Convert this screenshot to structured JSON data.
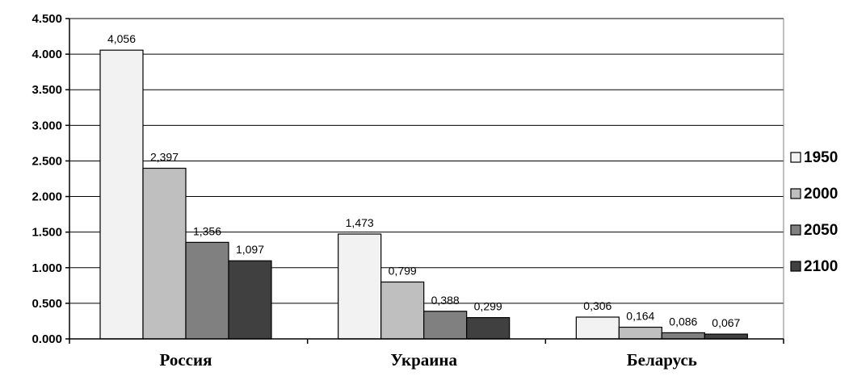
{
  "chart_data": {
    "type": "bar",
    "categories": [
      "Россия",
      "Украина",
      "Беларусь"
    ],
    "series": [
      {
        "name": "1950",
        "values": [
          4.056,
          1.473,
          0.306
        ],
        "labels": [
          "4,056",
          "1,473",
          "0,306"
        ],
        "color": "#f2f2f2"
      },
      {
        "name": "2000",
        "values": [
          2.397,
          0.799,
          0.164
        ],
        "labels": [
          "2,397",
          "0,799",
          "0,164"
        ],
        "color": "#bfbfbf"
      },
      {
        "name": "2050",
        "values": [
          1.356,
          0.388,
          0.086
        ],
        "labels": [
          "1,356",
          "0,388",
          "0,086"
        ],
        "color": "#808080"
      },
      {
        "name": "2100",
        "values": [
          1.097,
          0.299,
          0.067
        ],
        "labels": [
          "1,097",
          "0,299",
          "0,067"
        ],
        "color": "#404040"
      }
    ],
    "y_ticks": [
      "0.000",
      "0.500",
      "1.000",
      "1.500",
      "2.000",
      "2.500",
      "3.000",
      "3.500",
      "4.000",
      "4.500"
    ],
    "ylim": [
      0,
      4.5
    ],
    "title": "",
    "xlabel": "",
    "ylabel": "",
    "grid": "horizontal",
    "legend_position": "right"
  }
}
